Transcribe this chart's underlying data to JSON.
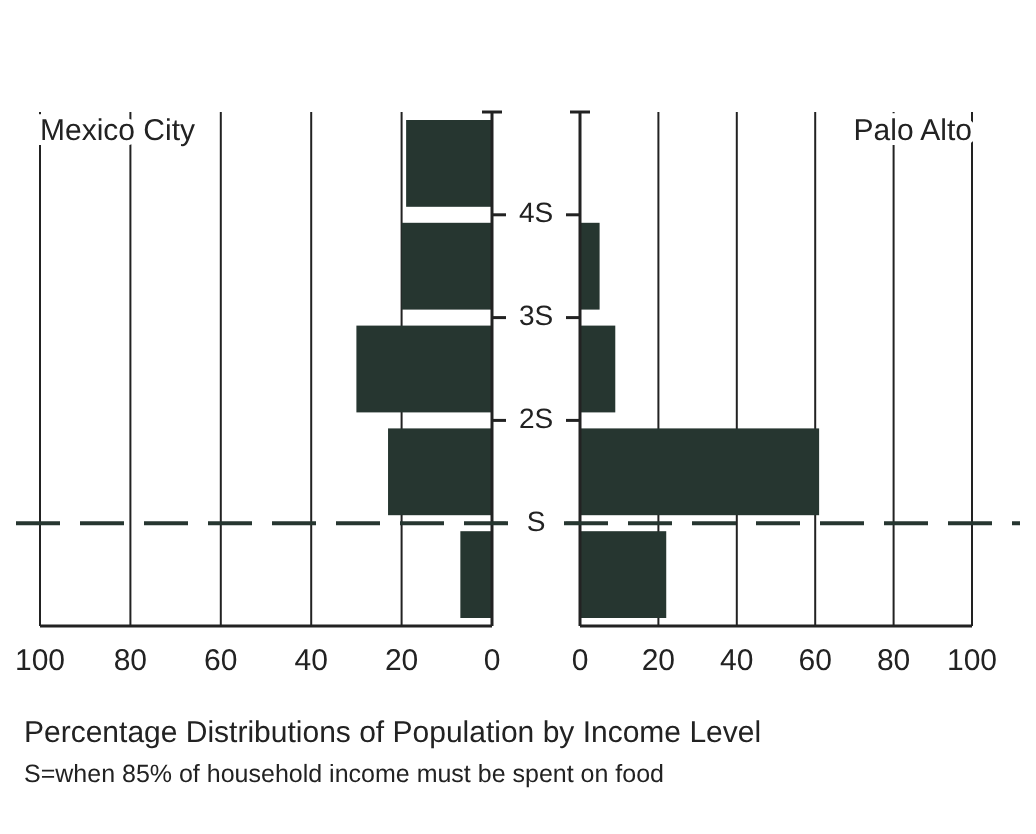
{
  "chart_data": [
    {
      "type": "histogram",
      "orientation": "horizontal",
      "title": "Mexico City",
      "bins": [
        0,
        1,
        2,
        3,
        4,
        5
      ],
      "values": [
        7,
        23,
        30,
        20,
        19
      ],
      "color": "#263630",
      "xlim": [
        100,
        0
      ],
      "xticks": [
        100,
        80,
        60,
        40,
        20,
        0
      ],
      "ylim": [
        0,
        5
      ],
      "yticks": [
        {
          "value": 1,
          "label": null
        },
        {
          "value": 2,
          "label": null
        },
        {
          "value": 3,
          "label": null
        },
        {
          "value": 4,
          "label": null
        }
      ],
      "grid": "x",
      "tick_labels": "x",
      "ref_lines": [
        {
          "axis": "y",
          "value": 1,
          "line_style": "dashed",
          "color": "#263630"
        }
      ],
      "annotations": [
        "Percentage Distributions of Population by Income Level",
        "S=when 85% of household income must be spent on food"
      ]
    },
    {
      "type": "histogram",
      "orientation": "horizontal",
      "title": "Palo Alto",
      "bins": [
        0,
        1,
        2,
        3,
        4,
        5
      ],
      "values": [
        22,
        61,
        9,
        5,
        0
      ],
      "color": "#263630",
      "xlim": [
        0,
        100
      ],
      "xticks": [
        0,
        20,
        40,
        60,
        80,
        100
      ],
      "ylim": [
        0,
        5
      ],
      "yticks": [
        {
          "value": 1,
          "label": "S"
        },
        {
          "value": 2,
          "label": "2S"
        },
        {
          "value": 3,
          "label": "3S"
        },
        {
          "value": 4,
          "label": "4S"
        }
      ],
      "grid": "x",
      "ref_lines": [
        {
          "axis": "y",
          "value": 1,
          "line_style": "dashed",
          "color": "#263630"
        }
      ]
    }
  ]
}
